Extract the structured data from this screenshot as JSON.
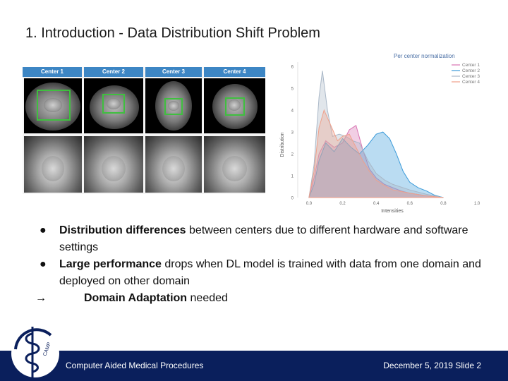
{
  "slide": {
    "title": "1. Introduction - Data Distribution Shift Problem"
  },
  "mri": {
    "centers": [
      "Center 1",
      "Center 2",
      "Center 3",
      "Center 4"
    ]
  },
  "chart_data": {
    "type": "area",
    "title": "Per center normalization",
    "xlabel": "Intensities",
    "ylabel": "Distribution",
    "xlim": [
      -0.05,
      1.05
    ],
    "ylim": [
      0,
      6.2
    ],
    "xticks": [
      "0.0",
      "0.2",
      "0.4",
      "0.6",
      "0.8",
      "1.0"
    ],
    "yticks": [
      "0",
      "1",
      "2",
      "3",
      "4",
      "5",
      "6"
    ],
    "grid": false,
    "legend_position": "top-right",
    "series": [
      {
        "name": "Center 1",
        "color": "#d873b2",
        "x": [
          0.0,
          0.03,
          0.06,
          0.1,
          0.15,
          0.2,
          0.24,
          0.28,
          0.32,
          0.36,
          0.4,
          0.45,
          0.5,
          0.55,
          0.6,
          0.7,
          0.8
        ],
        "y": [
          0.0,
          0.9,
          2.0,
          2.6,
          2.3,
          2.5,
          3.1,
          3.3,
          2.2,
          1.3,
          0.9,
          0.6,
          0.45,
          0.3,
          0.2,
          0.08,
          0.0
        ]
      },
      {
        "name": "Center 2",
        "color": "#3a9ad9",
        "x": [
          0.0,
          0.03,
          0.06,
          0.1,
          0.15,
          0.2,
          0.25,
          0.3,
          0.35,
          0.4,
          0.44,
          0.48,
          0.52,
          0.56,
          0.6,
          0.65,
          0.7,
          0.75,
          0.8
        ],
        "y": [
          0.0,
          0.6,
          1.7,
          2.5,
          2.1,
          2.7,
          2.3,
          2.0,
          2.4,
          2.9,
          3.0,
          2.7,
          2.0,
          1.2,
          0.7,
          0.45,
          0.3,
          0.1,
          0.0
        ]
      },
      {
        "name": "Center 3",
        "color": "#a9b7c7",
        "x": [
          0.0,
          0.03,
          0.06,
          0.08,
          0.11,
          0.14,
          0.18,
          0.22,
          0.26,
          0.3,
          0.35,
          0.4,
          0.45,
          0.5,
          0.6,
          0.7,
          0.8
        ],
        "y": [
          0.0,
          1.5,
          4.6,
          5.8,
          4.0,
          2.8,
          2.9,
          2.8,
          2.6,
          2.5,
          1.7,
          1.1,
          0.8,
          0.6,
          0.35,
          0.15,
          0.0
        ]
      },
      {
        "name": "Center 4",
        "color": "#f0a08a",
        "x": [
          0.0,
          0.03,
          0.06,
          0.09,
          0.13,
          0.17,
          0.2,
          0.24,
          0.28,
          0.32,
          0.36,
          0.4,
          0.45,
          0.5,
          0.6,
          0.7,
          0.8
        ],
        "y": [
          0.0,
          1.2,
          3.2,
          4.0,
          3.3,
          2.6,
          2.8,
          2.9,
          2.3,
          1.7,
          1.2,
          0.8,
          0.55,
          0.35,
          0.2,
          0.07,
          0.0
        ]
      }
    ]
  },
  "bullets": {
    "b1_bold": "Distribution differences",
    "b1_rest": " between centers due to different hardware and software settings",
    "b2_bold": "Large performance",
    "b2_rest": " drops when DL model is trained with data from one domain and deployed on other domain",
    "arrow_glyph": "→",
    "b3_bold": "Domain Adaptation",
    "b3_rest": " needed",
    "dot": "●"
  },
  "footer": {
    "left": "Computer Aided Medical Procedures",
    "right": "December 5, 2019   Slide 2",
    "logo_text": "CAMP"
  },
  "colors": {
    "footer_bg": "#0a1f5c",
    "tab_bg": "#3d86c4",
    "roi_box": "#3fbf3f"
  }
}
